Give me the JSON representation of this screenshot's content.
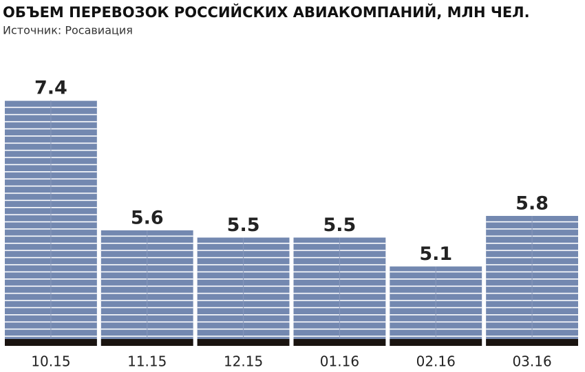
{
  "chart_data": {
    "type": "bar",
    "title": "ОБЪЕМ ПЕРЕВОЗОК РОССИЙСКИХ АВИАКОМПАНИЙ, МЛН ЧЕЛ.",
    "subtitle": "Источник: Росавиация",
    "categories": [
      "10.15",
      "11.15",
      "12.15",
      "01.16",
      "02.16",
      "03.16"
    ],
    "values": [
      7.4,
      5.6,
      5.5,
      5.5,
      5.1,
      5.8
    ],
    "color": "#7388b0",
    "ylim": [
      4,
      8
    ]
  }
}
